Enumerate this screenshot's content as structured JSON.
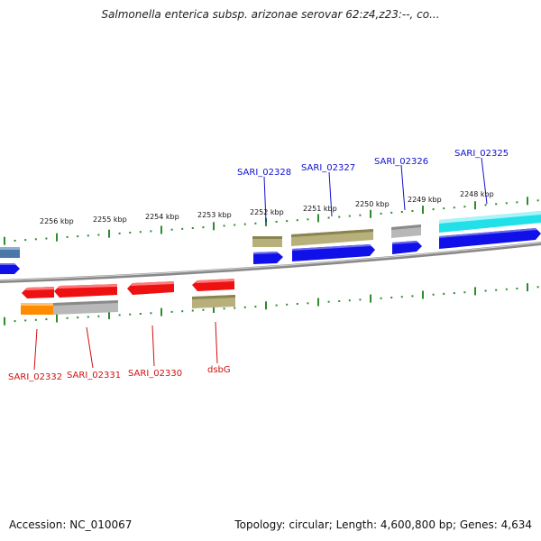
{
  "title": "Salmonella enterica subsp. arizonae serovar 62:z4,z23:--, co...",
  "footer": {
    "accession": "Accession: NC_010067",
    "stats": "Topology: circular; Length: 4,600,800 bp; Genes: 4,634"
  },
  "colors": {
    "backbone": "#808080",
    "tick": "#2e8b2e",
    "forward_label": "#1010d0",
    "reverse_label": "#d01010",
    "blue": "#1010e8",
    "red": "#ee1111",
    "olive": "#b8b07a",
    "gray": "#b8b8b8",
    "cyan": "#22e0e8",
    "orange": "#ff8c00",
    "steel": "#4a78a8"
  },
  "scale_labels": [
    "2256 kbp",
    "2255 kbp",
    "2254 kbp",
    "2253 kbp",
    "2252 kbp",
    "2251 kbp",
    "2250 kbp",
    "2249 kbp",
    "2248 kbp"
  ],
  "forward_genes": [
    "SARI_02328",
    "SARI_02327",
    "SARI_02326",
    "SARI_02325"
  ],
  "reverse_genes": [
    "SARI_02332",
    "SARI_02331",
    "SARI_02330",
    "dsbG"
  ]
}
